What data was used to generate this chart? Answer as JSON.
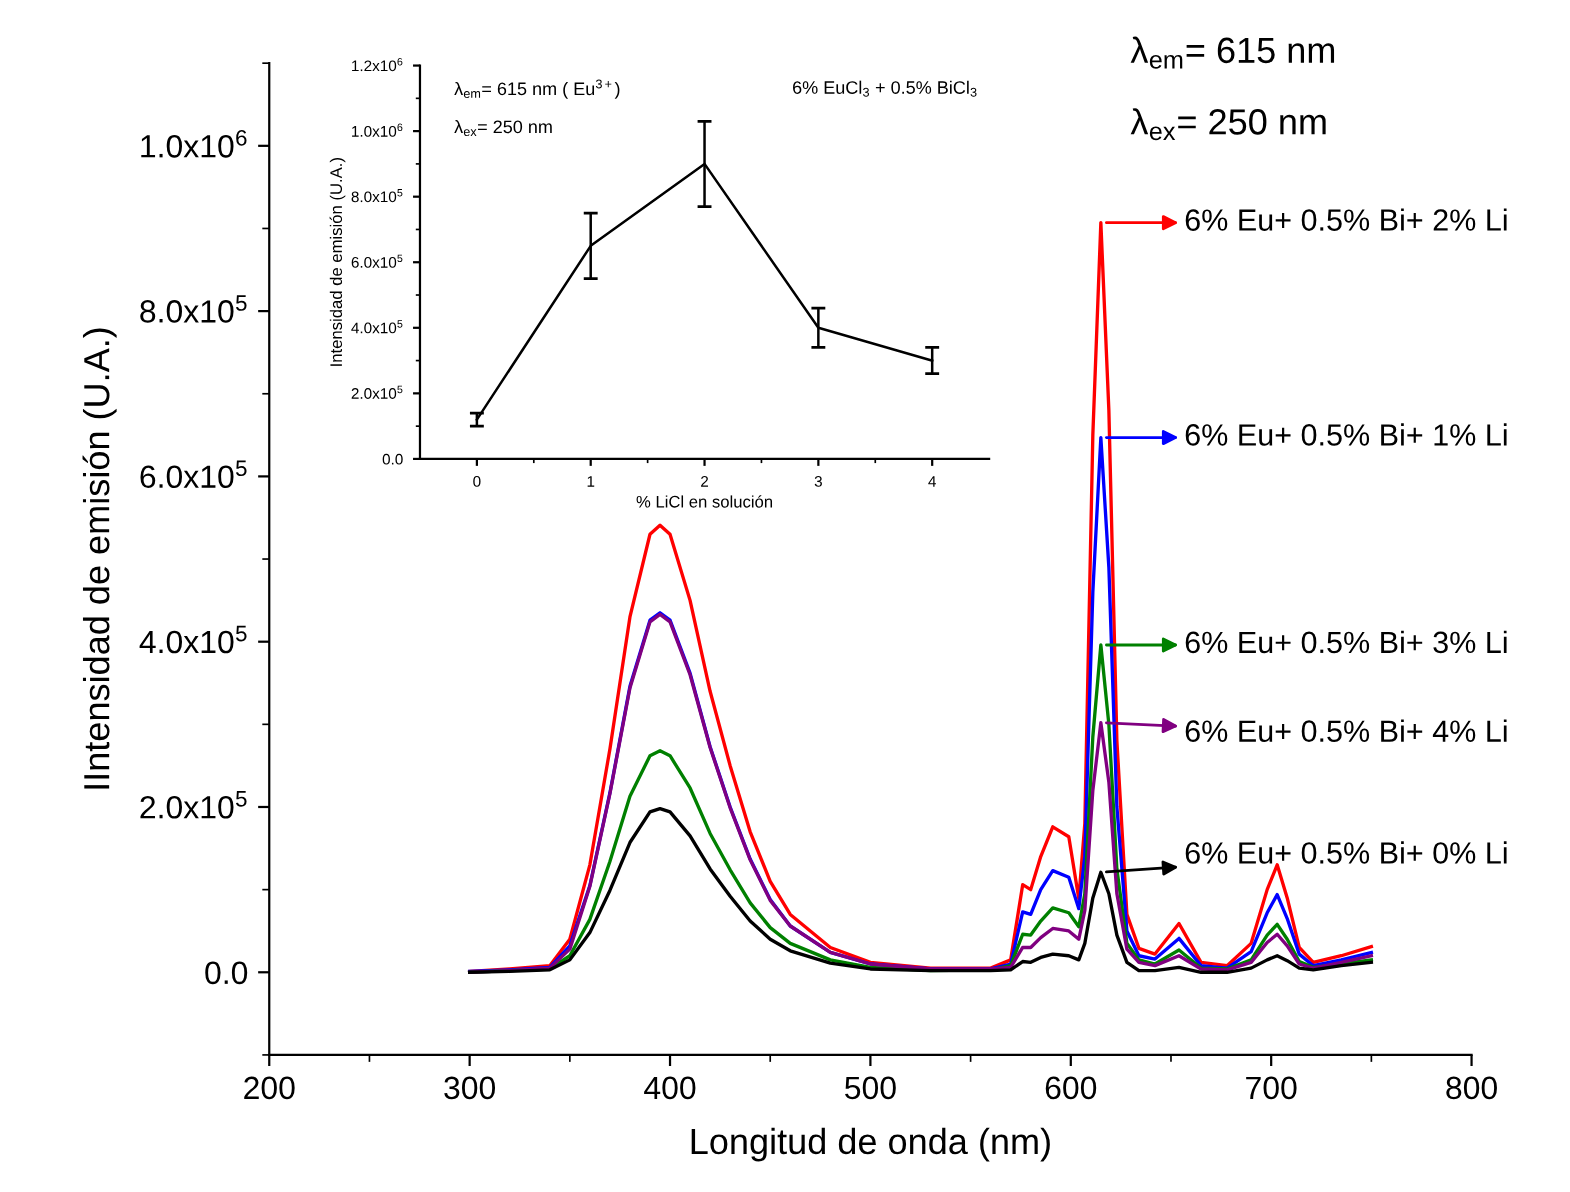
{
  "chart_data": [
    {
      "type": "line",
      "xlabel": "Longitud de onda (nm)",
      "ylabel": "IIntensidad de emisión (U.A.)",
      "x": [
        300,
        320,
        340,
        350,
        360,
        370,
        380,
        390,
        395,
        400,
        410,
        420,
        430,
        440,
        450,
        460,
        480,
        500,
        530,
        560,
        570,
        576,
        580,
        585,
        591,
        599,
        604,
        607,
        611,
        615,
        619,
        623,
        628,
        634,
        642,
        654,
        665,
        678,
        690,
        698,
        703,
        708,
        714,
        721,
        735,
        750
      ],
      "series": [
        {
          "name": "6% Eu+ 0.5% Bi+ 2% Li",
          "color": "#ff0000",
          "values": [
            1000.0,
            4000.0,
            8000.0,
            40000.0,
            130000.0,
            270000.0,
            430000.0,
            530000.0,
            541000.0,
            530000.0,
            450000.0,
            340000.0,
            250000.0,
            170000.0,
            110000.0,
            70000.0,
            30000.0,
            12000.0,
            5000.0,
            5000.0,
            15000.0,
            106000.0,
            100000.0,
            140000.0,
            176000.0,
            164000.0,
            89000.0,
            180000.0,
            650000.0,
            907000.0,
            680000.0,
            280000.0,
            70000.0,
            29000.0,
            22000.0,
            59000.0,
            12000.0,
            8000.0,
            35000.0,
            100000.0,
            130000.0,
            90000.0,
            30000.0,
            12000.0,
            20000.0,
            31000.0
          ]
        },
        {
          "name": "6% Eu+ 0.5% Bi+ 1% Li",
          "color": "#0000ff",
          "values": [
            1000.0,
            3000.0,
            6000.0,
            32000.0,
            105000.0,
            217000.0,
            346000.0,
            426000.0,
            435000.0,
            426000.0,
            362000.0,
            273000.0,
            200000.0,
            137000.0,
            88000.0,
            56000.0,
            24000.0,
            10000.0,
            4000.0,
            4000.0,
            10000.0,
            73000.0,
            70000.0,
            100000.0,
            123000.0,
            115000.0,
            77000.0,
            140000.0,
            460000.0,
            647000.0,
            490000.0,
            200000.0,
            50000.0,
            20000.0,
            16000.0,
            41000.0,
            8000.0,
            5000.0,
            25000.0,
            72000.0,
            94000.0,
            65000.0,
            22000.0,
            8000.0,
            15000.0,
            24000.0
          ]
        },
        {
          "name": "6% Eu+ 0.5% Bi+ 3% Li",
          "color": "#008000",
          "values": [
            0,
            2000.0,
            4000.0,
            20000.0,
            64000.0,
            134000.0,
            213000.0,
            262000.0,
            268000.0,
            262000.0,
            223000.0,
            168000.0,
            124000.0,
            84000.0,
            54000.0,
            35000.0,
            15000.0,
            6000.0,
            2000.0,
            3000.0,
            8000.0,
            46000.0,
            45000.0,
            62000.0,
            78000.0,
            72000.0,
            55000.0,
            95000.0,
            285000.0,
            396000.0,
            300000.0,
            125000.0,
            35000.0,
            15000.0,
            10000.0,
            27000.0,
            5000.0,
            4000.0,
            15000.0,
            45000.0,
            58000.0,
            40000.0,
            13000.0,
            6000.0,
            10000.0,
            15000.0
          ]
        },
        {
          "name": "6% Eu+ 0.5% Bi+ 4% Li",
          "color": "#800080",
          "values": [
            0,
            2000.0,
            5000.0,
            28000.0,
            104000.0,
            216000.0,
            344000.0,
            424000.0,
            433000.0,
            424000.0,
            360000.0,
            272000.0,
            199000.0,
            136000.0,
            87000.0,
            56000.0,
            24000.0,
            10000.0,
            4000.0,
            4000.0,
            6000.0,
            30000.0,
            30000.0,
            42000.0,
            53000.0,
            50000.0,
            40000.0,
            75000.0,
            220000.0,
            302000.0,
            230000.0,
            95000.0,
            28000.0,
            12000.0,
            8000.0,
            20000.0,
            4000.0,
            3000.0,
            12000.0,
            36000.0,
            46000.0,
            32000.0,
            10000.0,
            5000.0,
            12000.0,
            20000.0
          ]
        },
        {
          "name": "6% Eu+ 0.5% Bi+ 0% Li",
          "color": "#000000",
          "values": [
            0,
            1000.0,
            3000.0,
            15000.0,
            48000.0,
            99000.0,
            157000.0,
            194000.0,
            198000.0,
            194000.0,
            165000.0,
            125000.0,
            92000.0,
            62000.0,
            40000.0,
            26000.0,
            11000.0,
            4000.0,
            2000.0,
            2000.0,
            3000.0,
            13000.0,
            12000.0,
            18000.0,
            22000.0,
            20000.0,
            15000.0,
            35000.0,
            90000.0,
            121000.0,
            95000.0,
            45000.0,
            12000.0,
            2000.0,
            2000.0,
            6000.0,
            0,
            0,
            5000.0,
            15000.0,
            20000.0,
            14000.0,
            5000.0,
            3000.0,
            8000.0,
            12000.0
          ]
        }
      ],
      "xlim": [
        200,
        800
      ],
      "xticks": [
        200,
        {
          "value": 250,
          "label": null
        },
        300,
        {
          "value": 350,
          "label": null
        },
        400,
        {
          "value": 450,
          "label": null
        },
        500,
        {
          "value": 550,
          "label": null
        },
        600,
        {
          "value": 650,
          "label": null
        },
        700,
        {
          "value": 750,
          "label": null
        },
        800
      ],
      "ylim": [
        -100000,
        1100000
      ],
      "yticks": [
        {
          "value": -100000,
          "label": null
        },
        {
          "value": 0,
          "label": "0.0"
        },
        {
          "value": 100000,
          "label": null
        },
        {
          "value": 200000,
          "label": "2.0x10$^{5}$"
        },
        {
          "value": 300000,
          "label": null
        },
        {
          "value": 400000,
          "label": "4.0x10$^{5}$"
        },
        {
          "value": 500000,
          "label": null
        },
        {
          "value": 600000,
          "label": "6.0x10$^{5}$"
        },
        {
          "value": 700000,
          "label": null
        },
        {
          "value": 800000,
          "label": "8.0x10$^{5}$"
        },
        {
          "value": 900000,
          "label": null
        },
        {
          "value": 1000000,
          "label": "1.0x10$^{6}$"
        },
        {
          "value": 1100000,
          "label": null
        }
      ],
      "grid": false,
      "legend": "right",
      "marker": "none",
      "line_style": "solid",
      "annotations": [
        "λ$_{em}$= 615 nm",
        "λ$_{ex}$= 250 nm"
      ]
    },
    {
      "type": "line",
      "xlabel": "% LiCl en solución",
      "ylabel": "Intensidad de emisión (U.A.)",
      "x": [
        0,
        1,
        2,
        3,
        4
      ],
      "series": [
        {
          "color": "#000000",
          "values": [
            120000,
            650000,
            900000,
            400000,
            300000
          ],
          "errors": [
            20000,
            100000,
            130000,
            60000,
            40000
          ]
        }
      ],
      "xlim": [
        -0.5,
        4.5
      ],
      "xticks": [
        0,
        {
          "value": 0.5,
          "label": null
        },
        1,
        {
          "value": 1.5,
          "label": null
        },
        2,
        {
          "value": 2.5,
          "label": null
        },
        3,
        {
          "value": 3.5,
          "label": null
        },
        4
      ],
      "ylim": [
        0,
        1200000
      ],
      "yticks": [
        {
          "value": 0,
          "label": "0.0"
        },
        {
          "value": 100000,
          "label": null
        },
        {
          "value": 200000,
          "label": "2.0x10$^{5}$"
        },
        {
          "value": 300000,
          "label": null
        },
        {
          "value": 400000,
          "label": "4.0x10$^{5}$"
        },
        {
          "value": 500000,
          "label": null
        },
        {
          "value": 600000,
          "label": "6.0x10$^{5}$"
        },
        {
          "value": 700000,
          "label": null
        },
        {
          "value": 800000,
          "label": "8.0x10$^{5}$"
        },
        {
          "value": 900000,
          "label": null
        },
        {
          "value": 1000000,
          "label": "1.0x10$^{6}$"
        },
        {
          "value": 1100000,
          "label": null
        },
        {
          "value": 1200000,
          "label": "1.2x10$^{6}$"
        }
      ],
      "grid": false,
      "legend": false,
      "marker": "none",
      "line_style": "solid",
      "annotations": [
        "λ$_{em}$= 615 nm ( Eu$^{3+}$)",
        "λ$_{ex}$= 250 nm",
        "6% EuCl$_{3}$ + 0.5% BiCl$_{3}$"
      ]
    }
  ]
}
